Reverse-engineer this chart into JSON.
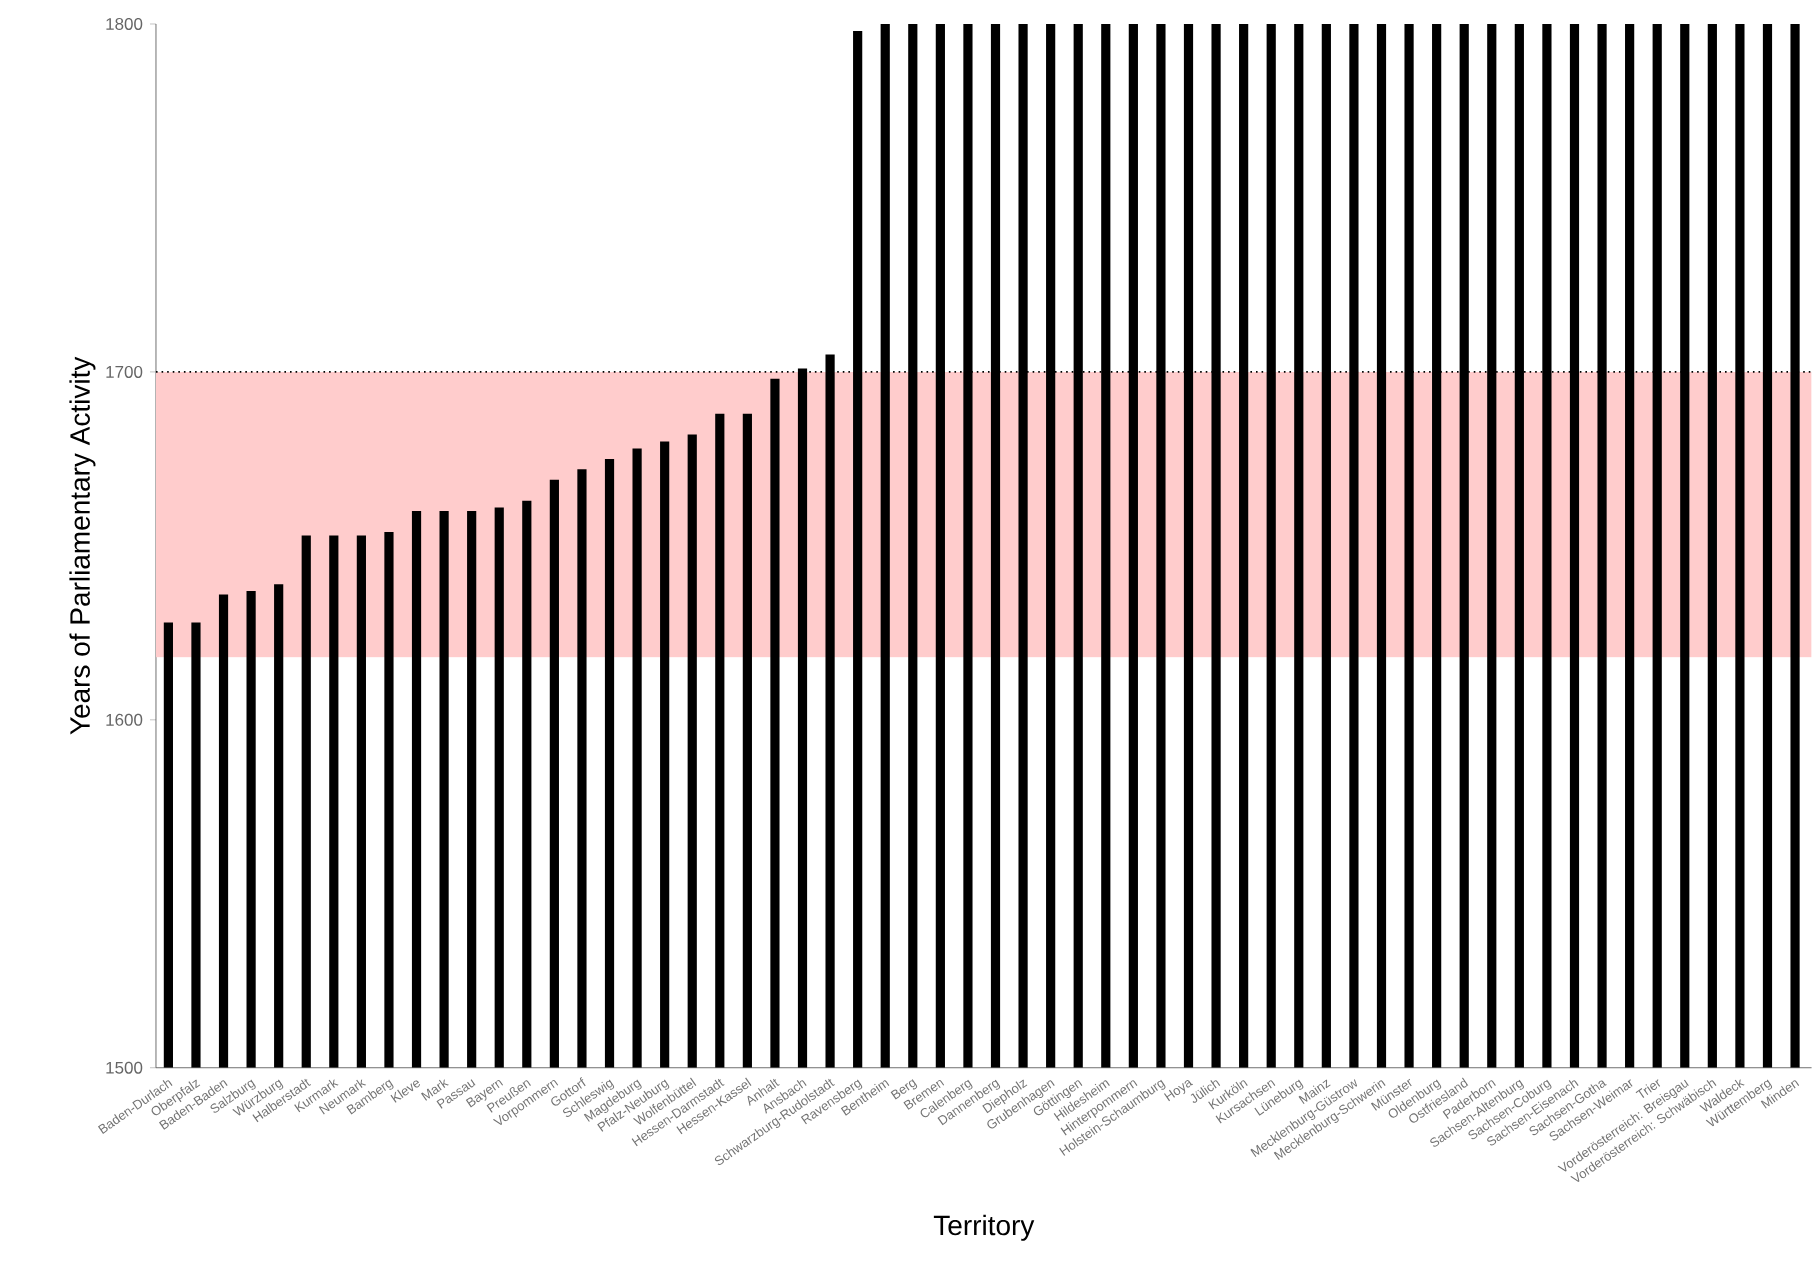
{
  "chart_data": {
    "type": "bar",
    "xlabel": "Territory",
    "ylabel": "Years of Parliamentary Activity",
    "categories": [
      "Baden-Durlach",
      "Oberpfalz",
      "Baden-Baden",
      "Salzburg",
      "Würzburg",
      "Halberstadt",
      "Kurmark",
      "Neumark",
      "Bamberg",
      "Kleve",
      "Mark",
      "Passau",
      "Bayern",
      "Preußen",
      "Vorpommern",
      "Gottorf",
      "Schleswig",
      "Magdeburg",
      "Pfalz-Neuburg",
      "Wolfenbüttel",
      "Hessen-Darmstadt",
      "Hessen-Kassel",
      "Anhalt",
      "Ansbach",
      "Schwarzburg-Rudolstadt",
      "Ravensberg",
      "Bentheim",
      "Berg",
      "Bremen",
      "Calenberg",
      "Dannenberg",
      "Diepholz",
      "Grubenhagen",
      "Göttingen",
      "Hildesheim",
      "Hinterpommern",
      "Holstein-Schaumburg",
      "Hoya",
      "Jülich",
      "Kurköln",
      "Kursachsen",
      "Lüneburg",
      "Mainz",
      "Mecklenburg-Güstrow",
      "Mecklenburg-Schwerin",
      "Münster",
      "Oldenburg",
      "Ostfriesland",
      "Paderborn",
      "Sachsen-Altenburg",
      "Sachsen-Coburg",
      "Sachsen-Eisenach",
      "Sachsen-Gotha",
      "Sachsen-Weimar",
      "Trier",
      "Vorderösterreich: Breisgau",
      "Vorderösterreich: Schwäbisch",
      "Waldeck",
      "Württemberg",
      "Minden"
    ],
    "values": [
      1628,
      1628,
      1636,
      1637,
      1639,
      1653,
      1653,
      1653,
      1654,
      1660,
      1660,
      1660,
      1661,
      1663,
      1669,
      1672,
      1675,
      1678,
      1680,
      1682,
      1688,
      1688,
      1698,
      1701,
      1705,
      1798,
      1800,
      1800,
      1800,
      1800,
      1800,
      1800,
      1800,
      1800,
      1800,
      1800,
      1800,
      1800,
      1800,
      1800,
      1800,
      1800,
      1800,
      1800,
      1800,
      1800,
      1800,
      1800,
      1800,
      1800,
      1800,
      1800,
      1800,
      1800,
      1800,
      1800,
      1800,
      1800,
      1800,
      1800
    ],
    "color": "#000000",
    "ylim": [
      1500,
      1800
    ],
    "yticks": [
      1500,
      1600,
      1700,
      1800
    ],
    "bands": [
      {
        "axis": "y",
        "from": 1618,
        "to": 1700,
        "color": "#ffcccc"
      }
    ],
    "ref_lines": [
      {
        "axis": "y",
        "value": 1700,
        "line_style": "dotted",
        "color": "#000000"
      }
    ]
  }
}
